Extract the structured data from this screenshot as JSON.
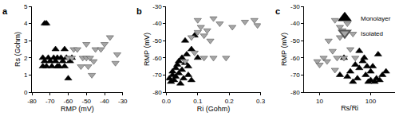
{
  "chart_data": [
    {
      "type": "scatter",
      "label": "a",
      "x_label": "RMP (mV)",
      "y_label": "Rs (Gohm)",
      "xlim": [
        -80,
        -30
      ],
      "xticks": [
        -80,
        -70,
        -60,
        -50,
        -40,
        -30
      ],
      "ylim": [
        0,
        5
      ],
      "yticks": [
        0,
        1,
        2,
        3,
        4,
        5
      ],
      "grid": false,
      "series": [
        {
          "name": "Monolayer",
          "color": "#000000",
          "marker": "triangle-up",
          "x": [
            -73,
            -72,
            -74,
            -73,
            -72,
            -71,
            -70,
            -69,
            -68,
            -67,
            -67,
            -66,
            -65,
            -64,
            -63,
            -62,
            -62,
            -61,
            -60,
            -59,
            -58,
            -74,
            -66
          ],
          "values": [
            4.0,
            4.0,
            2.0,
            1.8,
            1.5,
            2.0,
            1.8,
            1.5,
            2.0,
            2.5,
            1.8,
            2.0,
            1.5,
            2.0,
            1.8,
            2.5,
            1.5,
            2.0,
            0.8,
            1.8,
            2.0,
            1.5,
            1.5
          ]
        },
        {
          "name": "Isolated",
          "color": "#a6a6a6",
          "marker": "triangle-down",
          "x": [
            -60,
            -58,
            -57,
            -55,
            -53,
            -52,
            -50,
            -49,
            -48,
            -46,
            -45,
            -42,
            -40,
            -37,
            -34,
            -33,
            -50,
            -47
          ],
          "values": [
            2.0,
            2.0,
            2.5,
            2.5,
            1.5,
            2.0,
            2.0,
            1.5,
            2.0,
            1.8,
            2.5,
            2.5,
            2.8,
            3.2,
            1.7,
            2.2,
            2.8,
            1.0
          ]
        }
      ]
    },
    {
      "type": "scatter",
      "label": "b",
      "x_label": "Ri (Gohm)",
      "y_label": "RMP (mV)",
      "xlim": [
        0,
        0.3
      ],
      "xticks": [
        {
          "value": 0,
          "label": "0.0"
        },
        0.1,
        0.2,
        0.3
      ],
      "ylim": [
        -80,
        -30
      ],
      "yticks": [
        -80,
        -70,
        -60,
        -50,
        -40,
        -30
      ],
      "grid": false,
      "series": [
        {
          "name": "Monolayer",
          "color": "#000000",
          "marker": "triangle-up",
          "x": [
            0.01,
            0.015,
            0.02,
            0.02,
            0.025,
            0.03,
            0.03,
            0.035,
            0.04,
            0.04,
            0.045,
            0.05,
            0.05,
            0.055,
            0.06,
            0.065,
            0.07,
            0.07,
            0.08,
            0.08,
            0.09,
            0.1,
            0.06
          ],
          "values": [
            -72,
            -74,
            -70,
            -68,
            -73,
            -66,
            -71,
            -64,
            -69,
            -62,
            -75,
            -60,
            -67,
            -72,
            -63,
            -58,
            -70,
            -65,
            -55,
            -73,
            -47,
            -60,
            -50
          ]
        },
        {
          "name": "Isolated",
          "color": "#a6a6a6",
          "marker": "triangle-down",
          "x": [
            0.06,
            0.08,
            0.09,
            0.1,
            0.1,
            0.11,
            0.12,
            0.13,
            0.14,
            0.15,
            0.15,
            0.17,
            0.19,
            0.21,
            0.25,
            0.28,
            0.29,
            0.12
          ],
          "values": [
            -62,
            -48,
            -57,
            -45,
            -38,
            -42,
            -47,
            -44,
            -50,
            -60,
            -37,
            -40,
            -60,
            -42,
            -39,
            -38,
            -41,
            -60
          ]
        }
      ]
    },
    {
      "type": "scatter",
      "label": "c",
      "x_label": "Rs/Ri",
      "y_label": "RMP (mV)",
      "log": "x",
      "xlim": [
        5,
        300
      ],
      "xticks": [
        10,
        100
      ],
      "ylim": [
        -80,
        -30
      ],
      "yticks": [
        -80,
        -70,
        -60,
        -50,
        -40,
        -30
      ],
      "grid": false,
      "legend": "upper right",
      "series": [
        {
          "name": "Monolayer",
          "color": "#000000",
          "marker": "triangle-up",
          "x": [
            30,
            40,
            50,
            55,
            60,
            70,
            80,
            90,
            100,
            110,
            120,
            130,
            150,
            170,
            200,
            60,
            45,
            35,
            75,
            100,
            140,
            25,
            85
          ],
          "values": [
            -60,
            -68,
            -64,
            -72,
            -66,
            -62,
            -70,
            -74,
            -73,
            -65,
            -74,
            -72,
            -73,
            -70,
            -68,
            -56,
            -74,
            -71,
            -60,
            -68,
            -58,
            -70,
            -65
          ]
        },
        {
          "name": "Isolated",
          "color": "#a6a6a6",
          "marker": "triangle-down",
          "x": [
            9,
            10,
            12,
            15,
            18,
            20,
            22,
            25,
            25,
            28,
            30,
            35,
            40,
            45,
            20,
            14,
            50
          ],
          "values": [
            -62,
            -64,
            -60,
            -50,
            -56,
            -38,
            -60,
            -42,
            -48,
            -44,
            -60,
            -40,
            -55,
            -46,
            -67,
            -62,
            -60
          ]
        }
      ]
    }
  ]
}
